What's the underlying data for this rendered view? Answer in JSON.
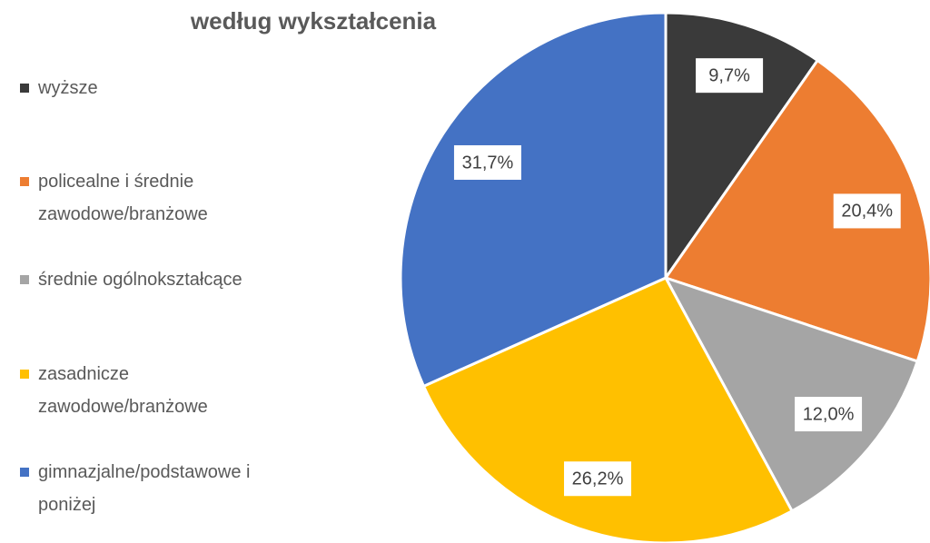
{
  "chart_data": {
    "type": "pie",
    "title": "według wykształcenia",
    "categories": [
      "wyższe",
      "policealne i średnie zawodowe/branżowe",
      "średnie ogólnokształcące",
      "zasadnicze zawodowe/branżowe",
      "gimnazjalne/podstawowe i poniżej"
    ],
    "values": [
      9.7,
      20.4,
      12.0,
      26.2,
      31.7
    ],
    "value_labels": [
      "9,7%",
      "20,4%",
      "12,0%",
      "26,2%",
      "31,7%"
    ],
    "colors": [
      "#3a3a3a",
      "#ed7d31",
      "#a5a5a5",
      "#ffc000",
      "#4472c4"
    ],
    "legend": "left"
  }
}
